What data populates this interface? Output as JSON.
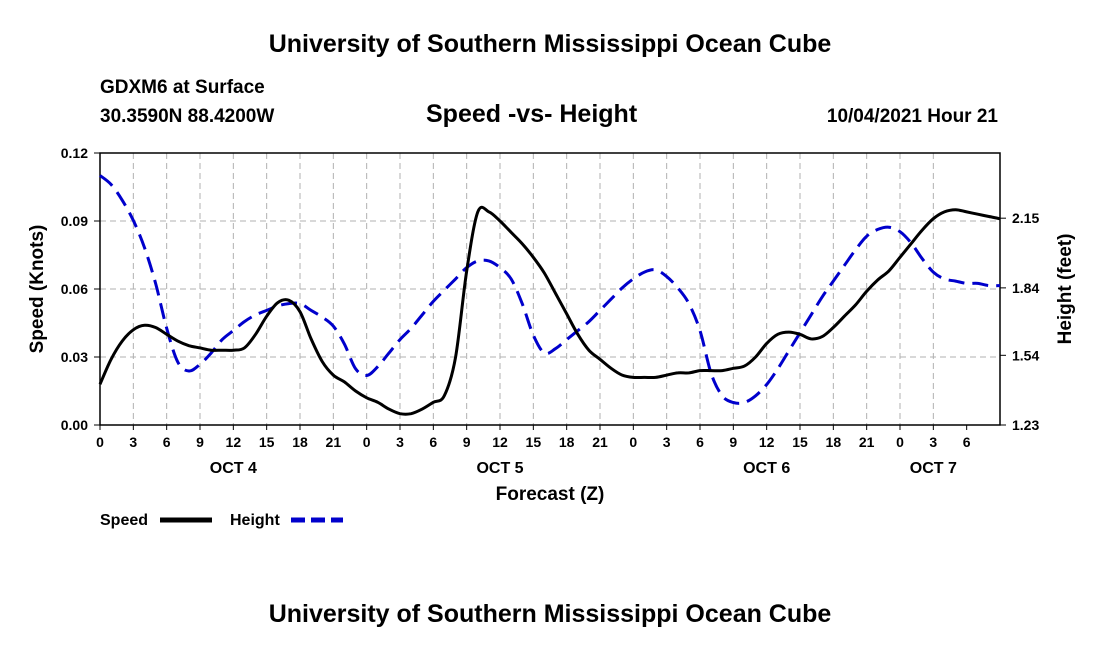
{
  "header": {
    "title": "University of Southern Mississippi Ocean Cube",
    "station": "GDXM6 at Surface",
    "coordinates": "30.3590N  88.4200W",
    "subtitle": "Speed -vs- Height",
    "datestamp": "10/04/2021 Hour 21"
  },
  "footer": {
    "title": "University of Southern Mississippi Ocean Cube"
  },
  "colors": {
    "speed": "#000000",
    "height": "#0000cc",
    "grid": "#b0b0b0"
  },
  "chart_data": {
    "type": "line",
    "title": "Speed -vs- Height",
    "xlabel": "Forecast (Z)",
    "ylabel": "Speed (Knots)",
    "y2label": "Height (feet)",
    "x_hours_range": [
      0,
      81
    ],
    "x_tick_labels": [
      "0",
      "3",
      "6",
      "9",
      "12",
      "15",
      "18",
      "21",
      "0",
      "3",
      "6",
      "9",
      "12",
      "15",
      "18",
      "21",
      "0",
      "3",
      "6",
      "9",
      "12",
      "15",
      "18",
      "21",
      "0",
      "3",
      "6"
    ],
    "day_labels": [
      {
        "label": "OCT 4",
        "hour": 12
      },
      {
        "label": "OCT 5",
        "hour": 36
      },
      {
        "label": "OCT 6",
        "hour": 60
      },
      {
        "label": "OCT 7",
        "hour": 75
      }
    ],
    "ylim": [
      0,
      0.12
    ],
    "y_ticks": [
      "0.00",
      "0.03",
      "0.06",
      "0.09",
      "0.12"
    ],
    "y2lim": [
      1.23,
      2.44
    ],
    "y2_ticks": [
      "1.23",
      "1.54",
      "1.84",
      "2.15"
    ],
    "grid": true,
    "legend_position": "bottom-left",
    "series": [
      {
        "name": "Speed",
        "axis": "left",
        "style": "solid",
        "hours": [
          0,
          1,
          2,
          3,
          4,
          5,
          6,
          7,
          8,
          9,
          10,
          11,
          12,
          13,
          14,
          15,
          16,
          17,
          18,
          19,
          20,
          21,
          22,
          23,
          24,
          25,
          26,
          27,
          28,
          29,
          30,
          31,
          32,
          33,
          34,
          35,
          36,
          37,
          38,
          39,
          40,
          41,
          42,
          43,
          44,
          45,
          46,
          47,
          48,
          49,
          50,
          51,
          52,
          53,
          54,
          55,
          56,
          57,
          58,
          59,
          60,
          61,
          62,
          63,
          64,
          65,
          66,
          67,
          68,
          69,
          70,
          71,
          72,
          73,
          74,
          75,
          76,
          77,
          78,
          79,
          80,
          81
        ],
        "values": [
          0.018,
          0.029,
          0.037,
          0.042,
          0.044,
          0.043,
          0.04,
          0.037,
          0.035,
          0.034,
          0.033,
          0.033,
          0.033,
          0.034,
          0.04,
          0.048,
          0.054,
          0.055,
          0.05,
          0.038,
          0.028,
          0.022,
          0.019,
          0.015,
          0.012,
          0.01,
          0.007,
          0.005,
          0.005,
          0.007,
          0.01,
          0.013,
          0.03,
          0.068,
          0.094,
          0.094,
          0.09,
          0.085,
          0.08,
          0.074,
          0.067,
          0.058,
          0.049,
          0.04,
          0.033,
          0.029,
          0.025,
          0.022,
          0.021,
          0.021,
          0.021,
          0.022,
          0.023,
          0.023,
          0.024,
          0.024,
          0.024,
          0.025,
          0.026,
          0.03,
          0.036,
          0.04,
          0.041,
          0.04,
          0.038,
          0.039,
          0.043,
          0.048,
          0.053,
          0.059,
          0.064,
          0.068,
          0.074,
          0.08,
          0.086,
          0.091,
          0.094,
          0.095,
          0.094,
          0.093,
          0.092,
          0.091
        ]
      },
      {
        "name": "Height",
        "axis": "right",
        "style": "dashed",
        "hours": [
          0,
          1,
          2,
          3,
          4,
          5,
          6,
          7,
          8,
          9,
          10,
          11,
          12,
          13,
          14,
          15,
          16,
          17,
          18,
          19,
          20,
          21,
          22,
          23,
          24,
          25,
          26,
          27,
          28,
          29,
          30,
          31,
          32,
          33,
          34,
          35,
          36,
          37,
          38,
          39,
          40,
          41,
          42,
          43,
          44,
          45,
          46,
          47,
          48,
          49,
          50,
          51,
          52,
          53,
          54,
          55,
          56,
          57,
          58,
          59,
          60,
          61,
          62,
          63,
          64,
          65,
          66,
          67,
          68,
          69,
          70,
          71,
          72,
          73,
          74,
          75,
          76,
          77,
          78,
          79,
          80,
          81
        ],
        "values": [
          2.34,
          2.3,
          2.23,
          2.14,
          2.02,
          1.86,
          1.66,
          1.51,
          1.47,
          1.5,
          1.55,
          1.61,
          1.65,
          1.69,
          1.72,
          1.74,
          1.76,
          1.77,
          1.77,
          1.74,
          1.71,
          1.67,
          1.59,
          1.48,
          1.45,
          1.49,
          1.55,
          1.61,
          1.66,
          1.72,
          1.78,
          1.83,
          1.88,
          1.93,
          1.96,
          1.96,
          1.93,
          1.88,
          1.77,
          1.63,
          1.55,
          1.57,
          1.61,
          1.65,
          1.69,
          1.74,
          1.79,
          1.84,
          1.88,
          1.91,
          1.92,
          1.89,
          1.84,
          1.77,
          1.65,
          1.46,
          1.36,
          1.33,
          1.33,
          1.36,
          1.41,
          1.48,
          1.56,
          1.64,
          1.72,
          1.8,
          1.87,
          1.94,
          2.01,
          2.07,
          2.1,
          2.11,
          2.09,
          2.04,
          1.97,
          1.91,
          1.88,
          1.87,
          1.86,
          1.86,
          1.85,
          1.85
        ]
      }
    ]
  }
}
